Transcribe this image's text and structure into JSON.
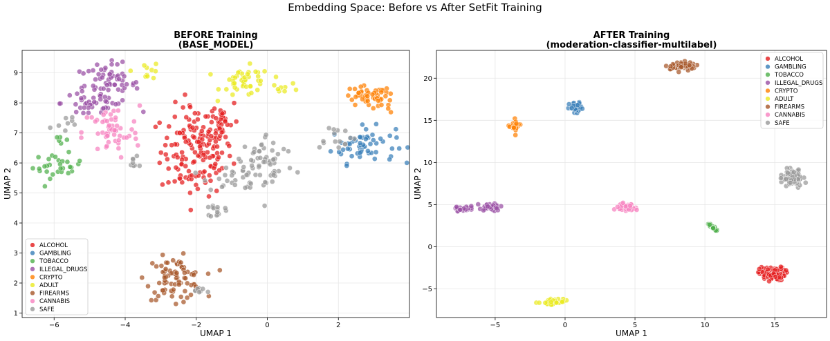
{
  "suptitle": "Embedding Space: Before vs After SetFit Training",
  "colors": {
    "ALCOHOL": "#e41a1c",
    "GAMBLING": "#377eb8",
    "TOBACCO": "#4daf4a",
    "ILLEGAL_DRUGS": "#984ea3",
    "CRYPTO": "#ff7f00",
    "ADULT": "#eaea20",
    "FIREARMS": "#a65628",
    "CANNABIS": "#f781bf",
    "SAFE": "#999999"
  },
  "chart_data": [
    {
      "type": "scatter",
      "title_line1": "BEFORE Training",
      "title_line2": "(BASE_MODEL)",
      "xlabel": "UMAP 1",
      "ylabel": "UMAP 2",
      "xlim": [
        -6.9,
        4.0
      ],
      "ylim": [
        0.85,
        9.75
      ],
      "xticks": [
        -6,
        -4,
        -2,
        0,
        2
      ],
      "yticks": [
        1,
        2,
        3,
        4,
        5,
        6,
        7,
        8,
        9
      ],
      "grid": true,
      "legend_position": "lower-left",
      "series": [
        {
          "name": "ALCOHOL",
          "clusters": [
            {
              "cx": -2.0,
              "cy": 6.4,
              "sx": 0.5,
              "sy": 0.75,
              "n": 150
            },
            {
              "cx": -1.3,
              "cy": 7.4,
              "sx": 0.25,
              "sy": 0.4,
              "n": 30
            }
          ]
        },
        {
          "name": "GAMBLING",
          "clusters": [
            {
              "cx": 2.7,
              "cy": 6.6,
              "sx": 0.45,
              "sy": 0.3,
              "n": 60
            }
          ]
        },
        {
          "name": "TOBACCO",
          "clusters": [
            {
              "cx": -5.9,
              "cy": 5.9,
              "sx": 0.35,
              "sy": 0.2,
              "n": 30
            },
            {
              "cx": -5.8,
              "cy": 6.8,
              "sx": 0.12,
              "sy": 0.12,
              "n": 5
            }
          ]
        },
        {
          "name": "ILLEGAL_DRUGS",
          "clusters": [
            {
              "cx": -4.5,
              "cy": 8.6,
              "sx": 0.45,
              "sy": 0.35,
              "n": 70
            },
            {
              "cx": -5.0,
              "cy": 8.0,
              "sx": 0.4,
              "sy": 0.3,
              "n": 25
            }
          ]
        },
        {
          "name": "CRYPTO",
          "clusters": [
            {
              "cx": 2.8,
              "cy": 8.2,
              "sx": 0.35,
              "sy": 0.18,
              "n": 40
            },
            {
              "cx": 3.3,
              "cy": 8.0,
              "sx": 0.12,
              "sy": 0.2,
              "n": 12
            }
          ]
        },
        {
          "name": "ADULT",
          "clusters": [
            {
              "cx": -0.6,
              "cy": 8.7,
              "sx": 0.35,
              "sy": 0.25,
              "n": 45
            },
            {
              "cx": 0.5,
              "cy": 8.5,
              "sx": 0.2,
              "sy": 0.08,
              "n": 8
            },
            {
              "cx": -3.4,
              "cy": 9.1,
              "sx": 0.2,
              "sy": 0.15,
              "n": 10
            }
          ]
        },
        {
          "name": "FIREARMS",
          "clusters": [
            {
              "cx": -2.6,
              "cy": 2.15,
              "sx": 0.4,
              "sy": 0.35,
              "n": 85
            }
          ]
        },
        {
          "name": "CANNABIS",
          "clusters": [
            {
              "cx": -4.4,
              "cy": 7.0,
              "sx": 0.4,
              "sy": 0.45,
              "n": 55
            }
          ]
        },
        {
          "name": "SAFE",
          "clusters": [
            {
              "cx": 0.0,
              "cy": 6.0,
              "sx": 0.4,
              "sy": 0.5,
              "n": 55
            },
            {
              "cx": -1.0,
              "cy": 5.6,
              "sx": 0.35,
              "sy": 0.3,
              "n": 25
            },
            {
              "cx": -1.4,
              "cy": 4.4,
              "sx": 0.1,
              "sy": 0.12,
              "n": 15
            },
            {
              "cx": 1.9,
              "cy": 6.9,
              "sx": 0.3,
              "sy": 0.2,
              "n": 15
            },
            {
              "cx": -5.8,
              "cy": 7.3,
              "sx": 0.3,
              "sy": 0.2,
              "n": 8
            },
            {
              "cx": -1.9,
              "cy": 1.75,
              "sx": 0.2,
              "sy": 0.08,
              "n": 8
            },
            {
              "cx": -3.8,
              "cy": 6.0,
              "sx": 0.2,
              "sy": 0.1,
              "n": 8
            }
          ]
        }
      ]
    },
    {
      "type": "scatter",
      "title_line1": "AFTER Training",
      "title_line2": "(moderation-classifier-multilabel)",
      "xlabel": "UMAP 1",
      "ylabel": "UMAP 2",
      "xlim": [
        -9.2,
        18.7
      ],
      "ylim": [
        -8.4,
        23.3
      ],
      "xticks": [
        -5,
        0,
        5,
        10,
        15
      ],
      "yticks": [
        -5,
        0,
        5,
        10,
        15,
        20
      ],
      "grid": true,
      "legend_position": "upper-right",
      "series": [
        {
          "name": "ALCOHOL",
          "clusters": [
            {
              "cx": 14.8,
              "cy": -3.2,
              "sx": 0.45,
              "sy": 0.4,
              "n": 90
            }
          ]
        },
        {
          "name": "GAMBLING",
          "clusters": [
            {
              "cx": 0.8,
              "cy": 16.4,
              "sx": 0.25,
              "sy": 0.35,
              "n": 35
            }
          ]
        },
        {
          "name": "TOBACCO",
          "clusters": [
            {
              "cx": 10.2,
              "cy": 2.8,
              "line_to": [
                10.9,
                1.9
              ],
              "sx": 0.08,
              "sy": 0.08,
              "n": 18
            }
          ]
        },
        {
          "name": "ILLEGAL_DRUGS",
          "clusters": [
            {
              "cx": -5.3,
              "cy": 4.7,
              "sx": 0.35,
              "sy": 0.2,
              "n": 40
            },
            {
              "cx": -7.2,
              "cy": 4.5,
              "sx": 0.3,
              "sy": 0.15,
              "n": 25
            }
          ]
        },
        {
          "name": "CRYPTO",
          "clusters": [
            {
              "cx": -3.6,
              "cy": 14.3,
              "sx": 0.18,
              "sy": 0.35,
              "n": 30
            }
          ]
        },
        {
          "name": "ADULT",
          "clusters": [
            {
              "cx": -0.8,
              "cy": -6.5,
              "sx": 0.4,
              "sy": 0.18,
              "n": 40
            }
          ]
        },
        {
          "name": "FIREARMS",
          "clusters": [
            {
              "cx": 8.5,
              "cy": 21.5,
              "sx": 0.45,
              "sy": 0.2,
              "n": 60
            }
          ]
        },
        {
          "name": "CANNABIS",
          "clusters": [
            {
              "cx": 4.4,
              "cy": 4.7,
              "sx": 0.3,
              "sy": 0.25,
              "n": 45
            }
          ]
        },
        {
          "name": "SAFE",
          "clusters": [
            {
              "cx": 16.3,
              "cy": 8.1,
              "sx": 0.35,
              "sy": 0.45,
              "n": 110
            }
          ]
        }
      ]
    }
  ]
}
